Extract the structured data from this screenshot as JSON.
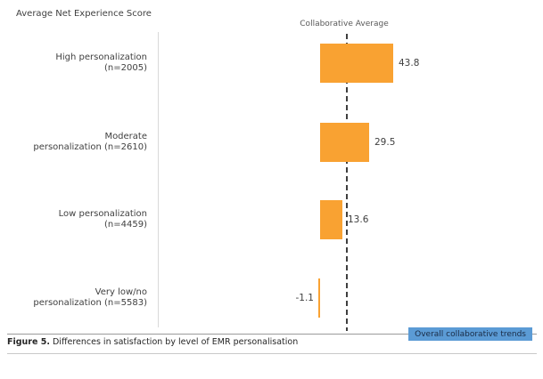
{
  "chart": {
    "title": "Average Net Experience Score",
    "reference_line_label": "Collaborative Average",
    "bar_color": "#f9a232",
    "reference_line_color": "#3f3f3f",
    "axis_line_color": "#d9d9d9"
  },
  "chart_data": {
    "type": "bar",
    "orientation": "horizontal",
    "title": "Average Net Experience Score",
    "xlabel": "",
    "ylabel": "",
    "legend": [],
    "grid": false,
    "baseline_value": 0,
    "reference_line": {
      "label": "Collaborative Average",
      "style": "dashed-vertical"
    },
    "categories": [
      {
        "lines": [
          "High personalization",
          "(n=2005)"
        ],
        "value": 43.8,
        "value_label": "43.8"
      },
      {
        "lines": [
          "Moderate",
          "personalization (n=2610)"
        ],
        "value": 29.5,
        "value_label": "29.5"
      },
      {
        "lines": [
          "Low personalization",
          "(n=4459)"
        ],
        "value": 13.6,
        "value_label": "13.6"
      },
      {
        "lines": [
          "Very low/no",
          "personalization (n=5583)"
        ],
        "value": -1.1,
        "value_label": "-1.1"
      }
    ]
  },
  "footer": {
    "badge": {
      "label": "Overall collaborative trends",
      "bg_color": "#5b9bd5",
      "text_color": "#1a2b45"
    },
    "caption_bold": "Figure 5.",
    "caption_rest": " Differences in satisfaction by level of EMR personalisation"
  }
}
